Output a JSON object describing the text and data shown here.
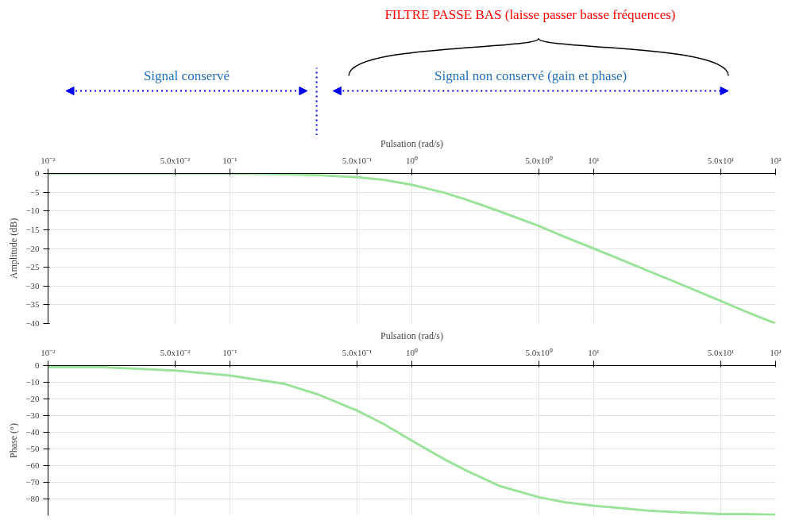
{
  "chart_data": [
    {
      "type": "line",
      "title": "FILTRE   PASSE    BAS (laisse passer basse fréquences)",
      "annotations": [
        "Signal conservé",
        "Signal non conservé (gain et phase)"
      ],
      "xlabel": "Pulsation (rad/s)",
      "ylabel": "Amplitude (dB)",
      "log": "x",
      "grid": true,
      "x": [
        0.01,
        0.02,
        0.05,
        0.1,
        0.2,
        0.3,
        0.5,
        0.7,
        1,
        1.5,
        2,
        3,
        5,
        7,
        10,
        20,
        30,
        50,
        70,
        100
      ],
      "series": [
        {
          "color": "#9be39b",
          "values": [
            0,
            0,
            0,
            0,
            -0.2,
            -0.4,
            -1,
            -1.7,
            -3,
            -5.1,
            -7,
            -10,
            -14,
            -17,
            -20,
            -26,
            -29.5,
            -34,
            -37,
            -40
          ]
        }
      ],
      "xlim": [
        0.01,
        100
      ],
      "ylim": [
        -40,
        0
      ],
      "xticks": [
        {
          "value": 0.01,
          "label": "10⁻²"
        },
        {
          "value": 0.05,
          "label": "5.0x10⁻²"
        },
        {
          "value": 0.1,
          "label": "10⁻¹"
        },
        {
          "value": 0.5,
          "label": "5.0x10⁻¹"
        },
        {
          "value": 1,
          "label": "10⁰"
        },
        {
          "value": 5,
          "label": "5.0x10⁰"
        },
        {
          "value": 10,
          "label": "10¹"
        },
        {
          "value": 50,
          "label": "5.0x10¹"
        },
        {
          "value": 100,
          "label": "10²"
        }
      ],
      "yticks": [
        0,
        -5,
        -10,
        -15,
        -20,
        -25,
        -30,
        -35,
        -40
      ]
    },
    {
      "type": "line",
      "xlabel": "Pulsation (rad/s)",
      "ylabel": "Phase (°)",
      "log": "x",
      "grid": true,
      "x": [
        0.01,
        0.02,
        0.05,
        0.1,
        0.2,
        0.3,
        0.5,
        0.7,
        1,
        1.5,
        2,
        3,
        5,
        7,
        10,
        20,
        30,
        50,
        70,
        100
      ],
      "series": [
        {
          "color": "#9be39b",
          "values": [
            -1,
            -1,
            -3,
            -6,
            -11,
            -17,
            -27,
            -35,
            -45,
            -56,
            -63,
            -72,
            -79,
            -82,
            -84,
            -87,
            -88,
            -89,
            -89,
            -89.5
          ]
        }
      ],
      "xlim": [
        0.01,
        100
      ],
      "ylim": [
        -90,
        0
      ],
      "xticks": [
        {
          "value": 0.01,
          "label": "10⁻²"
        },
        {
          "value": 0.05,
          "label": "5.0x10⁻²"
        },
        {
          "value": 0.1,
          "label": "10⁻¹"
        },
        {
          "value": 0.5,
          "label": "5.0x10⁻¹"
        },
        {
          "value": 1,
          "label": "10⁰"
        },
        {
          "value": 5,
          "label": "5.0x10⁰"
        },
        {
          "value": 10,
          "label": "10¹"
        },
        {
          "value": 50,
          "label": "5.0x10¹"
        },
        {
          "value": 100,
          "label": "10²"
        }
      ],
      "yticks": [
        0,
        -10,
        -20,
        -30,
        -40,
        -50,
        -60,
        -70,
        -80
      ]
    }
  ]
}
